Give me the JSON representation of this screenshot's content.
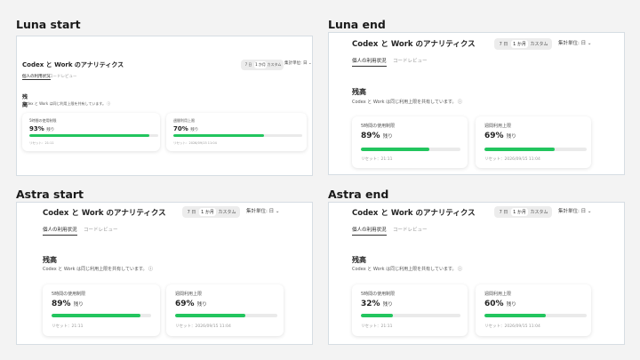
{
  "colors": {
    "accent": "#22c55e",
    "frame_border": "#d6dde3",
    "background": "#f3f3f3"
  },
  "panels": [
    {
      "label": "Luna start",
      "app_title": "Codex と Work のアナリティクス",
      "segments": [
        "7 日",
        "1 か月",
        "カスタム"
      ],
      "selected_segment": 1,
      "aggregation": "集計単位:",
      "aggregation_value": "日",
      "tabs": [
        "個人の利用状況",
        "コードレビュー"
      ],
      "section_title": "残高",
      "section_subtitle": "Codex と Work は同じ利用上限を共有しています。 ⓘ",
      "cards": [
        {
          "label": "5時間の使用制限",
          "value": "93%",
          "remaining": "残り",
          "fill": 0.93,
          "reset": "リセット：21:11"
        },
        {
          "label": "週間利用上限",
          "value": "70%",
          "remaining": "残り",
          "fill": 0.7,
          "reset": "リセット：2026/09/15 11:04"
        }
      ]
    },
    {
      "label": "Luna end",
      "app_title": "Codex と Work のアナリティクス",
      "segments": [
        "7 日",
        "1 か月",
        "カスタム"
      ],
      "selected_segment": 1,
      "aggregation": "集計単位:",
      "aggregation_value": "日",
      "tabs": [
        "個人の利用状況",
        "コードレビュー"
      ],
      "section_title": "残高",
      "section_subtitle": "Codex と Work は同じ利用上限を共有しています。 ⓘ",
      "cards": [
        {
          "label": "5時間の使用制限",
          "value": "89%",
          "remaining": "残り",
          "fill": 0.89,
          "reset": "リセット：21:11"
        },
        {
          "label": "週間利用上限",
          "value": "69%",
          "remaining": "残り",
          "fill": 0.69,
          "reset": "リセット：2026/09/15 11:04"
        }
      ]
    },
    {
      "label": "Astra start",
      "app_title": "Codex と Work のアナリティクス",
      "segments": [
        "7 日",
        "1 か月",
        "カスタム"
      ],
      "selected_segment": 1,
      "aggregation": "集計単位:",
      "aggregation_value": "日",
      "tabs": [
        "個人の利用状況",
        "コードレビュー"
      ],
      "section_title": "残高",
      "section_subtitle": "Codex と Work は同じ利用上限を共有しています。 ⓘ",
      "cards": [
        {
          "label": "5時間の使用制限",
          "value": "89%",
          "remaining": "残り",
          "fill": 0.89,
          "reset": "リセット：21:11"
        },
        {
          "label": "週間利用上限",
          "value": "69%",
          "remaining": "残り",
          "fill": 0.69,
          "reset": "リセット：2026/09/15 11:04"
        }
      ]
    },
    {
      "label": "Astra end",
      "app_title": "Codex と Work のアナリティクス",
      "segments": [
        "7 日",
        "1 か月",
        "カスタム"
      ],
      "selected_segment": 1,
      "aggregation": "集計単位:",
      "aggregation_value": "日",
      "tabs": [
        "個人の利用状況",
        "コードレビュー"
      ],
      "section_title": "残高",
      "section_subtitle": "Codex と Work は同じ利用上限を共有しています。 ⓘ",
      "cards": [
        {
          "label": "5時間の使用制限",
          "value": "32%",
          "remaining": "残り",
          "fill": 0.32,
          "reset": "リセット：21:11"
        },
        {
          "label": "週間利用上限",
          "value": "60%",
          "remaining": "残り",
          "fill": 0.6,
          "reset": "リセット：2026/09/15 11:04"
        }
      ]
    }
  ]
}
